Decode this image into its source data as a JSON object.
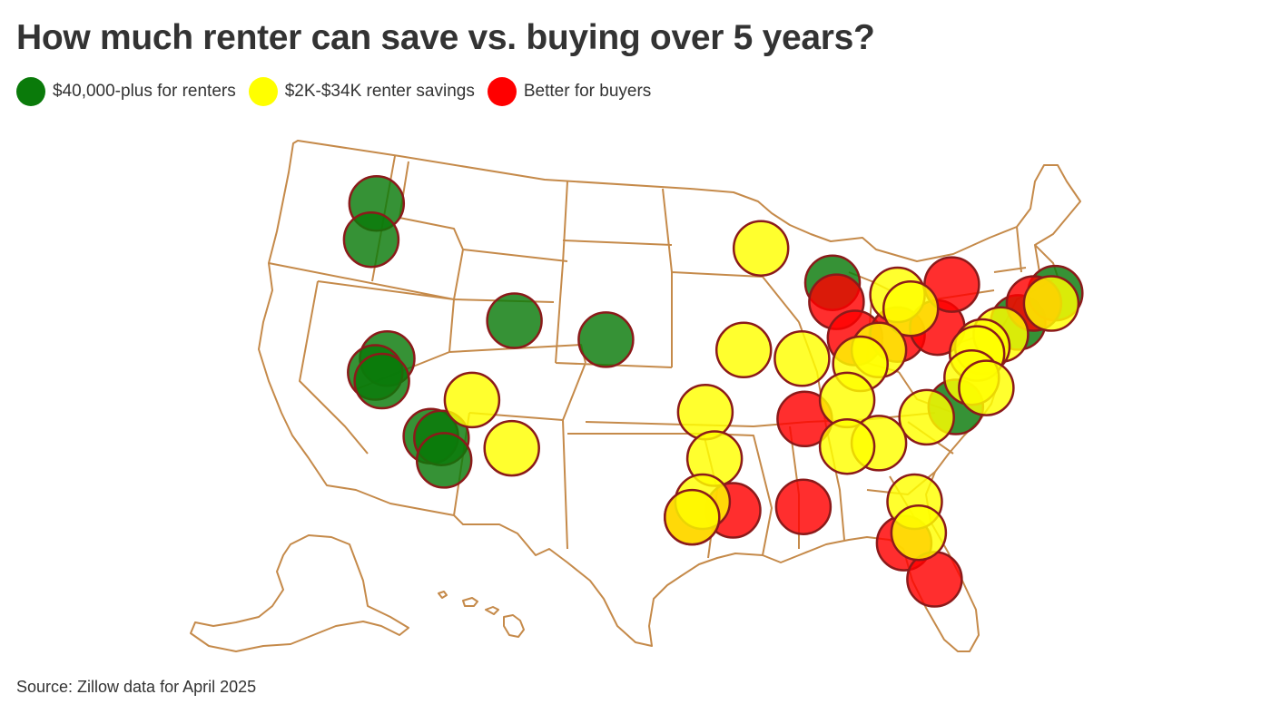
{
  "title": "How much renter can save vs. buying over 5 years?",
  "legend": [
    {
      "key": "green",
      "label": "$40,000-plus for renters",
      "color": "#0a7a0a"
    },
    {
      "key": "yellow",
      "label": "$2K-$34K renter savings",
      "color": "#ffff00"
    },
    {
      "key": "red",
      "label": "Better for buyers",
      "color": "#ff0000"
    }
  ],
  "source": "Source: Zillow data for April 2025",
  "colors": {
    "green": "#0a7a0a",
    "yellow": "#ffff00",
    "red": "#ff0000",
    "marker_stroke": "#8b1a1a",
    "state_border": "#c58a4a"
  },
  "chart_data": {
    "type": "symbol-map",
    "region": "Contiguous United States",
    "categories": [
      "$40,000-plus for renters",
      "$2K-$34K renter savings",
      "Better for buyers"
    ],
    "markers": [
      {
        "category": "green",
        "lon": -122.3,
        "lat": 47.6
      },
      {
        "category": "green",
        "lon": -122.7,
        "lat": 45.5
      },
      {
        "category": "green",
        "lon": -121.5,
        "lat": 38.6
      },
      {
        "category": "green",
        "lon": -122.4,
        "lat": 37.8
      },
      {
        "category": "green",
        "lon": -121.9,
        "lat": 37.3
      },
      {
        "category": "green",
        "lon": -118.2,
        "lat": 34.1
      },
      {
        "category": "green",
        "lon": -117.4,
        "lat": 34.0
      },
      {
        "category": "green",
        "lon": -117.2,
        "lat": 32.7
      },
      {
        "category": "green",
        "lon": -111.9,
        "lat": 40.8
      },
      {
        "category": "green",
        "lon": -105.0,
        "lat": 39.7
      },
      {
        "category": "green",
        "lon": -87.9,
        "lat": 43.0
      },
      {
        "category": "green",
        "lon": -78.6,
        "lat": 35.8
      },
      {
        "category": "green",
        "lon": -73.9,
        "lat": 40.7
      },
      {
        "category": "green",
        "lon": -71.1,
        "lat": 42.4
      },
      {
        "category": "yellow",
        "lon": -115.1,
        "lat": 36.2
      },
      {
        "category": "yellow",
        "lon": -112.1,
        "lat": 33.4
      },
      {
        "category": "yellow",
        "lon": -93.3,
        "lat": 45.0
      },
      {
        "category": "yellow",
        "lon": -94.6,
        "lat": 39.1
      },
      {
        "category": "yellow",
        "lon": -90.2,
        "lat": 38.6
      },
      {
        "category": "yellow",
        "lon": -97.5,
        "lat": 35.5
      },
      {
        "category": "yellow",
        "lon": -96.8,
        "lat": 32.8
      },
      {
        "category": "yellow",
        "lon": -97.7,
        "lat": 30.3
      },
      {
        "category": "yellow",
        "lon": -98.5,
        "lat": 29.4
      },
      {
        "category": "yellow",
        "lon": -83.0,
        "lat": 42.3
      },
      {
        "category": "yellow",
        "lon": -82.0,
        "lat": 41.5
      },
      {
        "category": "yellow",
        "lon": -84.4,
        "lat": 39.1
      },
      {
        "category": "yellow",
        "lon": -85.8,
        "lat": 38.3
      },
      {
        "category": "yellow",
        "lon": -86.8,
        "lat": 36.2
      },
      {
        "category": "yellow",
        "lon": -80.8,
        "lat": 35.2
      },
      {
        "category": "yellow",
        "lon": -84.4,
        "lat": 33.7
      },
      {
        "category": "yellow",
        "lon": -86.8,
        "lat": 33.5
      },
      {
        "category": "yellow",
        "lon": -81.7,
        "lat": 30.3
      },
      {
        "category": "yellow",
        "lon": -81.4,
        "lat": 28.5
      },
      {
        "category": "yellow",
        "lon": -75.2,
        "lat": 40.0
      },
      {
        "category": "yellow",
        "lon": -76.6,
        "lat": 39.3
      },
      {
        "category": "yellow",
        "lon": -77.0,
        "lat": 38.9
      },
      {
        "category": "yellow",
        "lon": -77.4,
        "lat": 37.5
      },
      {
        "category": "yellow",
        "lon": -76.3,
        "lat": 36.9
      },
      {
        "category": "yellow",
        "lon": -71.4,
        "lat": 41.8
      },
      {
        "category": "red",
        "lon": -87.6,
        "lat": 41.9
      },
      {
        "category": "red",
        "lon": -86.2,
        "lat": 39.8
      },
      {
        "category": "red",
        "lon": -83.0,
        "lat": 40.0
      },
      {
        "category": "red",
        "lon": -80.0,
        "lat": 40.4
      },
      {
        "category": "red",
        "lon": -78.9,
        "lat": 42.9
      },
      {
        "category": "red",
        "lon": -72.7,
        "lat": 41.8
      },
      {
        "category": "red",
        "lon": -90.0,
        "lat": 35.1
      },
      {
        "category": "red",
        "lon": -90.1,
        "lat": 30.0
      },
      {
        "category": "red",
        "lon": -95.4,
        "lat": 29.8
      },
      {
        "category": "red",
        "lon": -98.5,
        "lat": 29.4
      },
      {
        "category": "red",
        "lon": -82.5,
        "lat": 27.9
      },
      {
        "category": "red",
        "lon": -80.2,
        "lat": 25.8
      }
    ]
  }
}
